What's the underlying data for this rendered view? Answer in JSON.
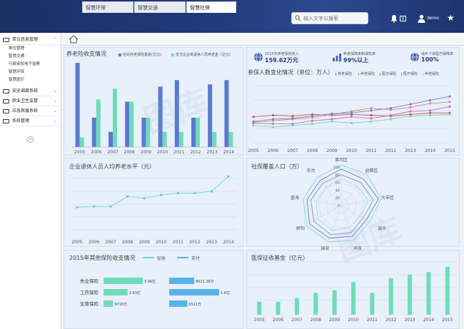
{
  "header": {
    "search_placeholder": "输入文字以搜索",
    "notification_count": "0",
    "username": "demo"
  },
  "sidebar": {
    "groups": [
      {
        "label": "单位信息管理",
        "items": [
          "单位管理",
          "智慧交通",
          "行政审批电子监察",
          "智慧环保",
          "智慧医疗"
        ]
      },
      {
        "label": "安全调度系统"
      },
      {
        "label": "职业卫生监管"
      },
      {
        "label": "应急救援系统"
      },
      {
        "label": "系统管理"
      }
    ]
  },
  "tabs": [
    "智慧环保",
    "智慧交通",
    "智慧社保"
  ],
  "stats": [
    {
      "label": "2015年养老保险收入",
      "value": "159.62万元"
    },
    {
      "label": "养老保障率和保险率",
      "value": "99%以上"
    },
    {
      "label": "城乡个体医疗保障率",
      "value": "100%"
    }
  ],
  "panels": {
    "p1_title": "养老险收支情况",
    "p2_title": "参保人数变化情况（单位：万人）",
    "p3_title": "企业退休人员人均养老水平（元）",
    "p4_title": "社保覆盖人口（万）",
    "p5_title": "2015年其他保险收支情况",
    "p6_title": "医保征收基金（亿元）"
  },
  "chart_data": [
    {
      "type": "bar",
      "title": "养老险收支情况",
      "categories": [
        "2005",
        "2006",
        "2007",
        "2008",
        "2009",
        "2010",
        "2011",
        "2012",
        "2013",
        "2014"
      ],
      "series": [
        {
          "name": "征收养老保险基金(亿元)",
          "color": "#5b78d3",
          "values": [
            1.95,
            0.68,
            0.35,
            1.05,
            0.68,
            1.4,
            1.55,
            0.68,
            1.45,
            1.55
          ]
        },
        {
          "name": "支付企业离退休人员养老金（亿元）",
          "color": "#6fdcb9",
          "values": [
            0.22,
            1.1,
            1.35,
            1.05,
            0.68,
            0.35,
            0.35,
            0.68,
            0.35,
            0.35
          ]
        }
      ],
      "ylim": [
        0,
        2
      ]
    },
    {
      "type": "line",
      "title": "参保人数变化情况（单位：万人）",
      "categories": [
        "2005",
        "2006",
        "2007",
        "2008",
        "2009",
        "2010",
        "2011",
        "2012",
        "2013",
        "2014",
        "2015"
      ],
      "series": [
        {
          "name": "养老保险",
          "color": "#cc5555",
          "values": [
            33,
            35,
            34,
            36,
            35,
            36,
            35,
            34,
            36,
            38,
            38
          ]
        },
        {
          "name": "养老保险",
          "color": "#e08a7a",
          "values": [
            26,
            28,
            30,
            32,
            36,
            40,
            44,
            42,
            45,
            50,
            52
          ]
        },
        {
          "name": "医疗保险",
          "color": "#7080c8",
          "values": [
            27,
            30,
            31,
            34,
            37,
            38,
            41,
            44,
            49,
            54,
            59
          ]
        },
        {
          "name": "医疗保险",
          "color": "#d070b0",
          "values": [
            25,
            24,
            24,
            28,
            30,
            33,
            31,
            35,
            40,
            41,
            46
          ]
        },
        {
          "name": "养老保险",
          "color": "#7fd0c0",
          "values": [
            22,
            20,
            22,
            24,
            27,
            25,
            27,
            30,
            34,
            35,
            36
          ]
        }
      ],
      "ylim": [
        0,
        80
      ]
    },
    {
      "type": "line",
      "title": "企业退休人员人均养老水平（元）",
      "categories": [
        "2005",
        "2006",
        "2007",
        "2008",
        "2009",
        "2010",
        "2011",
        "2012",
        "2013",
        "2014"
      ],
      "values": [
        1100,
        1130,
        1130,
        1520,
        1450,
        1580,
        1650,
        1650,
        1720,
        2300
      ],
      "ylim": [
        0,
        2500
      ]
    },
    {
      "type": "radar",
      "title": "社保覆盖人口（万）",
      "axes": [
        "事河区",
        "益都区",
        "大丰区",
        "端水",
        "滨海",
        "瑞安",
        "射阳",
        "盛海",
        "东台"
      ],
      "rings": [
        "100",
        "80",
        "60",
        "40",
        "20",
        "0"
      ]
    },
    {
      "type": "bar",
      "title": "2015年其他保险收支情况",
      "legend": [
        "征收",
        "支付"
      ],
      "categories": [
        "失业保险",
        "工伤保险",
        "生育保险"
      ],
      "series": [
        {
          "name": "征收",
          "labels": [
            "3.96亿",
            "2.43亿",
            "9718万"
          ],
          "values": [
            3.96,
            2.43,
            0.97
          ]
        },
        {
          "name": "支付",
          "labels": [
            "9021.38万",
            "1.8亿",
            "6511万"
          ],
          "values": [
            0.9,
            1.8,
            0.65
          ]
        }
      ]
    },
    {
      "type": "bar",
      "title": "医保征收基金（亿元）",
      "categories": [
        "2005",
        "2006",
        "2007",
        "2008",
        "2009",
        "2010",
        "2011",
        "2012",
        "2013",
        "2014",
        "2015"
      ],
      "values": [
        2.5,
        2.5,
        3.2,
        4.2,
        4.7,
        6.3,
        4.2,
        7.0,
        7.7,
        8.2,
        9.2
      ],
      "ylim": [
        0,
        10
      ]
    }
  ]
}
